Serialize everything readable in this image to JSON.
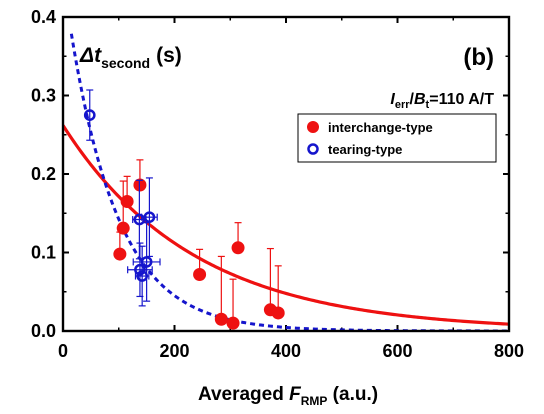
{
  "chart_data": {
    "type": "scatter",
    "panel_label": "(b)",
    "annotation": {
      "symbol": "Δt",
      "subscript": "second",
      "unit": "(s)"
    },
    "condition": {
      "i": "I",
      "i_sub": "err",
      "slash": "/",
      "b": "B",
      "b_sub": "t",
      "value": "=110 A/T"
    },
    "xlabel": {
      "prefix": "Averaged ",
      "symbol": "F",
      "subscript": "RMP",
      "unit": " (a.u.)"
    },
    "ylabel": "",
    "xlim": [
      0,
      800
    ],
    "ylim": [
      0,
      0.4
    ],
    "x_ticks": [
      "0",
      "200",
      "400",
      "600",
      "800"
    ],
    "y_ticks": [
      "0.0",
      "0.1",
      "0.2",
      "0.3",
      "0.4"
    ],
    "legend_position": "upper-right",
    "series": [
      {
        "name": "interchange-type",
        "color": "#ee1111",
        "marker": "filled-circle",
        "points": [
          {
            "x": 102,
            "y": 0.098,
            "err_low": 0.0,
            "err_high": 0.028
          },
          {
            "x": 108,
            "y": 0.131,
            "err_low": 0.0,
            "err_high": 0.06
          },
          {
            "x": 115,
            "y": 0.165,
            "err_low": 0.0,
            "err_high": 0.032
          },
          {
            "x": 138,
            "y": 0.186,
            "err_low": 0.0,
            "err_high": 0.032
          },
          {
            "x": 245,
            "y": 0.072,
            "err_low": 0.0,
            "err_high": 0.032
          },
          {
            "x": 284,
            "y": 0.015,
            "err_low": 0.0,
            "err_high": 0.08
          },
          {
            "x": 305,
            "y": 0.01,
            "err_low": 0.0,
            "err_high": 0.056
          },
          {
            "x": 314,
            "y": 0.106,
            "err_low": 0.0,
            "err_high": 0.032
          },
          {
            "x": 372,
            "y": 0.027,
            "err_low": 0.0,
            "err_high": 0.078
          },
          {
            "x": 386,
            "y": 0.023,
            "err_low": 0.0,
            "err_high": 0.06
          }
        ]
      },
      {
        "name": "tearing-type",
        "color": "#1515cc",
        "marker": "open-circle",
        "points": [
          {
            "x": 48,
            "y": 0.275,
            "err_y": 0.032,
            "err_x": 0
          },
          {
            "x": 137,
            "y": 0.142,
            "err_y": 0.05,
            "err_x": 12
          },
          {
            "x": 155,
            "y": 0.145,
            "err_y": 0.05,
            "err_x": 14
          },
          {
            "x": 150,
            "y": 0.088,
            "err_y": 0.05,
            "err_x": 24
          },
          {
            "x": 138,
            "y": 0.078,
            "err_y": 0.034,
            "err_x": 22
          },
          {
            "x": 142,
            "y": 0.07,
            "err_y": 0.038,
            "err_x": 12
          }
        ]
      }
    ],
    "fits": [
      {
        "series": "interchange-type",
        "style": "solid",
        "color": "#ee1111",
        "model": "exponential",
        "a": 0.262,
        "b": 0.00425,
        "x_range": [
          0,
          800
        ]
      },
      {
        "series": "tearing-type",
        "style": "dashed",
        "color": "#1515cc",
        "model": "exponential",
        "a": 0.45,
        "b": 0.0115,
        "x_range": [
          15,
          800
        ]
      }
    ]
  }
}
